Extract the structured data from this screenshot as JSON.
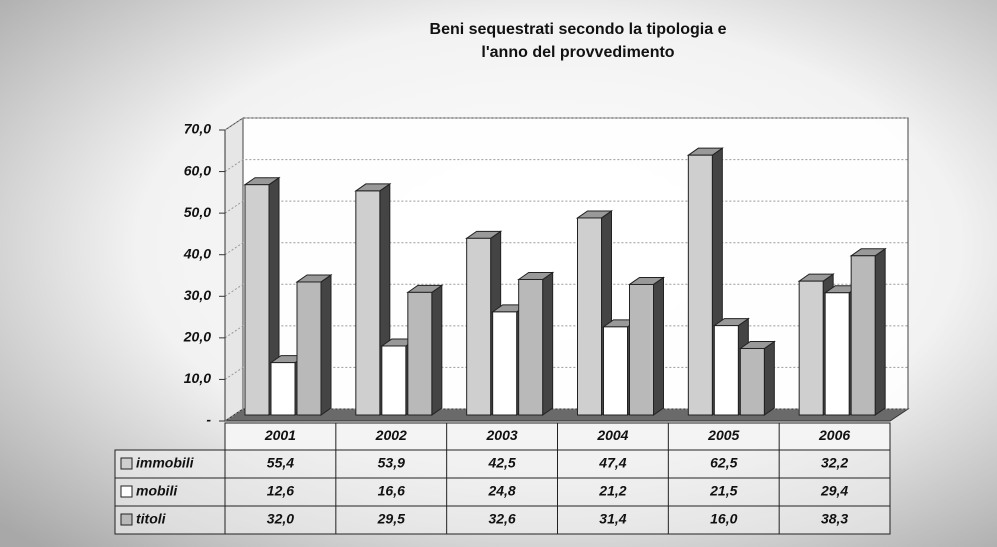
{
  "chart_data": {
    "type": "bar3d",
    "title": "Beni sequestrati secondo la tipologia e",
    "subtitle": "l'anno del provvedimento",
    "categories": [
      "2001",
      "2002",
      "2003",
      "2004",
      "2005",
      "2006"
    ],
    "series": [
      {
        "name": "immobili",
        "color": "#cfcfcf",
        "values": [
          55.4,
          53.9,
          42.5,
          47.4,
          62.5,
          32.2
        ],
        "value_labels": [
          "55,4",
          "53,9",
          "42,5",
          "47,4",
          "62,5",
          "32,2"
        ]
      },
      {
        "name": "mobili",
        "color": "#ffffff",
        "values": [
          12.6,
          16.6,
          24.8,
          21.2,
          21.5,
          29.4
        ],
        "value_labels": [
          "12,6",
          "16,6",
          "24,8",
          "21,2",
          "21,5",
          "29,4"
        ]
      },
      {
        "name": "titoli",
        "color": "#b9b9b9",
        "values": [
          32.0,
          29.5,
          32.6,
          31.4,
          16.0,
          38.3
        ],
        "value_labels": [
          "32,0",
          "29,5",
          "32,6",
          "31,4",
          "16,0",
          "38,3"
        ]
      }
    ],
    "ylim": [
      0,
      70
    ],
    "yticks": [
      {
        "value": 0,
        "label": "-"
      },
      {
        "value": 10,
        "label": "10,0"
      },
      {
        "value": 20,
        "label": "20,0"
      },
      {
        "value": 30,
        "label": "30,0"
      },
      {
        "value": 40,
        "label": "40,0"
      },
      {
        "value": 50,
        "label": "50,0"
      },
      {
        "value": 60,
        "label": "60,0"
      },
      {
        "value": 70,
        "label": "70,0"
      }
    ],
    "grid": true
  }
}
